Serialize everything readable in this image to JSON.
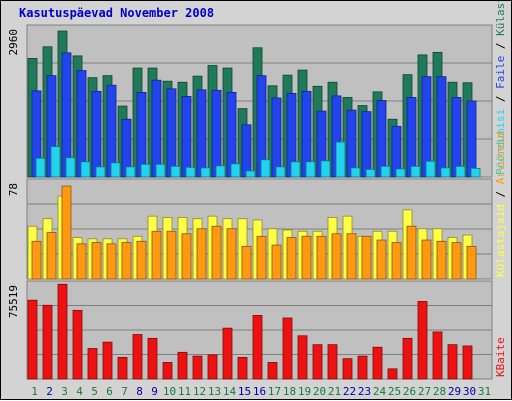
{
  "colors": {
    "background": "#d3d3d3",
    "panel": "#c0c0c0",
    "grid": "#808080",
    "title": "#0000cc",
    "tick_normal": "#1a7a3a",
    "tick_weekend": "#0000aa",
    "kuulastatud": "#1f7a5a",
    "faile": "#2244ee",
    "poordumisi": "#22d3ee",
    "kulastajaid": "#ffff44",
    "arvuteid": "#ff9911",
    "kbaite": "#ee1111"
  },
  "chart_data": {
    "type": "bar",
    "title": "Kasutuspäevad November 2008",
    "x": [
      "1",
      "2",
      "3",
      "4",
      "5",
      "6",
      "7",
      "8",
      "9",
      "10",
      "11",
      "12",
      "13",
      "14",
      "15",
      "16",
      "17",
      "18",
      "19",
      "20",
      "21",
      "22",
      "23",
      "24",
      "25",
      "26",
      "27",
      "28",
      "29",
      "30",
      "31"
    ],
    "weekend_days": [
      "2",
      "8",
      "9",
      "15",
      "16",
      "22",
      "23",
      "29",
      "30"
    ],
    "panels": [
      {
        "id": "top",
        "ytick_label": "2960",
        "ymax": 2960,
        "series": [
          {
            "name": "Kuulastatud",
            "color_key": "kuulastatud",
            "offset": 0,
            "values": [
              2340,
              2570,
              2880,
              2390,
              1960,
              2000,
              1400,
              2150,
              2150,
              1890,
              1870,
              1990,
              2200,
              2150,
              1350,
              2550,
              1800,
              2010,
              2110,
              1790,
              1870,
              1570,
              1410,
              1680,
              1140,
              2020,
              2410,
              2460,
              1870,
              1860,
              null
            ]
          },
          {
            "name": "Faile",
            "color_key": "faile",
            "offset": 1,
            "values": [
              1700,
              2000,
              2450,
              2100,
              1690,
              1810,
              1140,
              1670,
              1910,
              1740,
              1590,
              1720,
              1710,
              1670,
              1030,
              2000,
              1560,
              1650,
              1690,
              1300,
              1600,
              1320,
              1290,
              1510,
              1000,
              1570,
              1980,
              1980,
              1570,
              1500,
              null
            ]
          },
          {
            "name": "Pöördumisi",
            "color_key": "poordumisi",
            "offset": 2,
            "values": [
              370,
              600,
              380,
              300,
              200,
              280,
              200,
              250,
              250,
              210,
              190,
              180,
              220,
              260,
              120,
              340,
              200,
              300,
              300,
              320,
              690,
              180,
              150,
              210,
              160,
              210,
              310,
              180,
              210,
              170,
              null
            ]
          }
        ]
      },
      {
        "id": "middle",
        "ytick_label": "78",
        "ymax": 78,
        "series": [
          {
            "name": "Külastajaid",
            "color_key": "kulastajaid",
            "offset": 0,
            "values": [
              42,
              48,
              66,
              33,
              32,
              32,
              32,
              34,
              50,
              49,
              49,
              48,
              50,
              48,
              48,
              47,
              40,
              39,
              38,
              38,
              49,
              50,
              34,
              38,
              38,
              55,
              40,
              40,
              33,
              35,
              null
            ]
          },
          {
            "name": "Arvuteid",
            "color_key": "arvuteid",
            "offset": 1,
            "values": [
              30,
              37,
              74,
              28,
              29,
              28,
              29,
              30,
              38,
              38,
              36,
              40,
              42,
              40,
              26,
              34,
              27,
              33,
              34,
              34,
              36,
              36,
              34,
              31,
              29,
              42,
              31,
              30,
              29,
              26,
              null
            ]
          }
        ]
      },
      {
        "id": "bottom",
        "ytick_label": "75519",
        "ymax": 75519,
        "series": [
          {
            "name": "KBaite",
            "color_key": "kbaite",
            "offset": 0,
            "values": [
              62000,
              58000,
              74500,
              54000,
              24000,
              29000,
              17000,
              35000,
              32000,
              13000,
              21000,
              18000,
              19000,
              40000,
              17000,
              50000,
              13000,
              48000,
              34000,
              27000,
              27000,
              16000,
              18000,
              25000,
              8000,
              32000,
              61000,
              37000,
              27000,
              26000,
              null
            ]
          }
        ]
      }
    ],
    "legend": [
      {
        "name": "Pöördumisi",
        "color_key": "poordumisi",
        "panel": "top"
      },
      {
        "name": "Faile",
        "color_key": "faile",
        "panel": "top"
      },
      {
        "name": "Külastatud",
        "color_key": "kuulastatud",
        "panel": "top"
      },
      {
        "name": "Külastajaid",
        "color_key": "kulastajaid",
        "panel": "middle"
      },
      {
        "name": "Arvuteid",
        "color_key": "arvuteid",
        "panel": "middle"
      },
      {
        "name": "KBaite",
        "color_key": "kbaite",
        "panel": "bottom"
      }
    ],
    "legend_placement": "right",
    "grid": true
  }
}
